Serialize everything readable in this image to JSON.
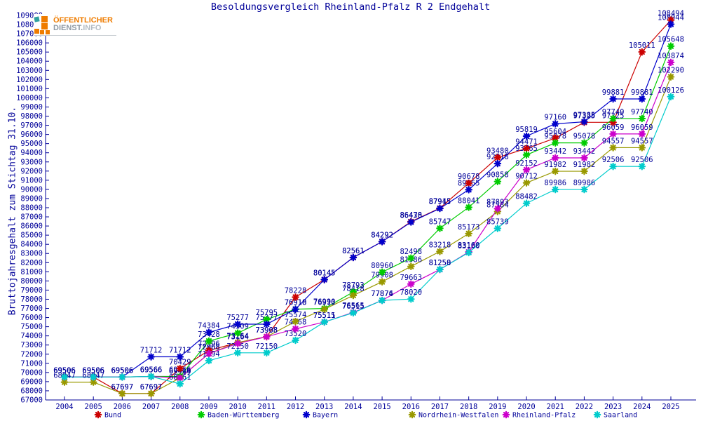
{
  "title": "Besoldungsvergleich Rheinland-Pfalz R 2 Endgehalt",
  "logo": {
    "line1": "ÖFFENTLICHER",
    "line2_part1": "DIENST.",
    "line2_part2": "INFO",
    "orange": "#ef7c00",
    "teal": "#2fa0a0"
  },
  "y_axis_title": "Bruttojahresgehalt zum Stichtag 31.10.",
  "text_color": "#000099",
  "chart_data": {
    "type": "line",
    "x": [
      2004,
      2005,
      2006,
      2007,
      2008,
      2009,
      2010,
      2011,
      2012,
      2013,
      2014,
      2015,
      2016,
      2017,
      2018,
      2019,
      2020,
      2021,
      2022,
      2023,
      2024,
      2025
    ],
    "xlabel": "",
    "ylabel": "Bruttojahresgehalt zum Stichtag 31.10.",
    "ylim": [
      67000,
      109000
    ],
    "ytick_step": 1000,
    "grid": false,
    "legend_position": "bottom",
    "marker": "star",
    "series": [
      {
        "name": "Bund",
        "color": "#cc0000",
        "values": [
          69506,
          69506,
          67697,
          67697,
          70429,
          72396,
          73264,
          73908,
          78228,
          80145,
          82561,
          84292,
          86478,
          87945,
          90678,
          93480,
          94471,
          95604,
          97325,
          97325,
          105011,
          108494
        ]
      },
      {
        "name": "Baden-Württemberg",
        "color": "#00cc00",
        "values": [
          69506,
          69506,
          69506,
          69566,
          69566,
          73428,
          74309,
          75795,
          76918,
          76990,
          78793,
          80960,
          82498,
          85747,
          88041,
          90858,
          93765,
          95078,
          95078,
          97740,
          97740,
          105648
        ]
      },
      {
        "name": "Bayern",
        "color": "#0000cc",
        "values": [
          69506,
          69506,
          69506,
          71712,
          71712,
          74384,
          75277,
          75277,
          76910,
          80145,
          82561,
          84292,
          86430,
          87915,
          89965,
          92818,
          95819,
          97160,
          97385,
          99881,
          99881,
          108044
        ]
      },
      {
        "name": "Nordrhein-Westfalen",
        "color": "#999900",
        "values": [
          68947,
          68947,
          67697,
          67697,
          69410,
          72068,
          73264,
          73908,
          75574,
          76910,
          78418,
          79908,
          81586,
          83218,
          85173,
          87584,
          90712,
          91982,
          91982,
          94557,
          94557,
          102290
        ]
      },
      {
        "name": "Rheinland-Pfalz",
        "color": "#cc00cc",
        "values": [
          69506,
          69506,
          69506,
          69566,
          69404,
          72068,
          73164,
          73908,
          74768,
          75515,
          76565,
          77876,
          79663,
          81250,
          83160,
          87893,
          92152,
          93442,
          93442,
          96059,
          96059,
          103874
        ]
      },
      {
        "name": "Saarland",
        "color": "#00cccc",
        "values": [
          69506,
          69506,
          69506,
          69566,
          68761,
          71294,
          72150,
          72150,
          73520,
          75511,
          76515,
          77874,
          78020,
          81258,
          83100,
          85739,
          88482,
          89986,
          89986,
          92506,
          92506,
          100126
        ]
      }
    ],
    "layout_hints": {
      "plot_left": 65,
      "plot_right": 993,
      "plot_top": 22,
      "plot_bottom": 570,
      "x_first": 92,
      "x_step": 41.19,
      "legend_x": [
        140,
        287,
        437,
        588,
        722,
        852
      ],
      "legend_y": 591
    }
  }
}
